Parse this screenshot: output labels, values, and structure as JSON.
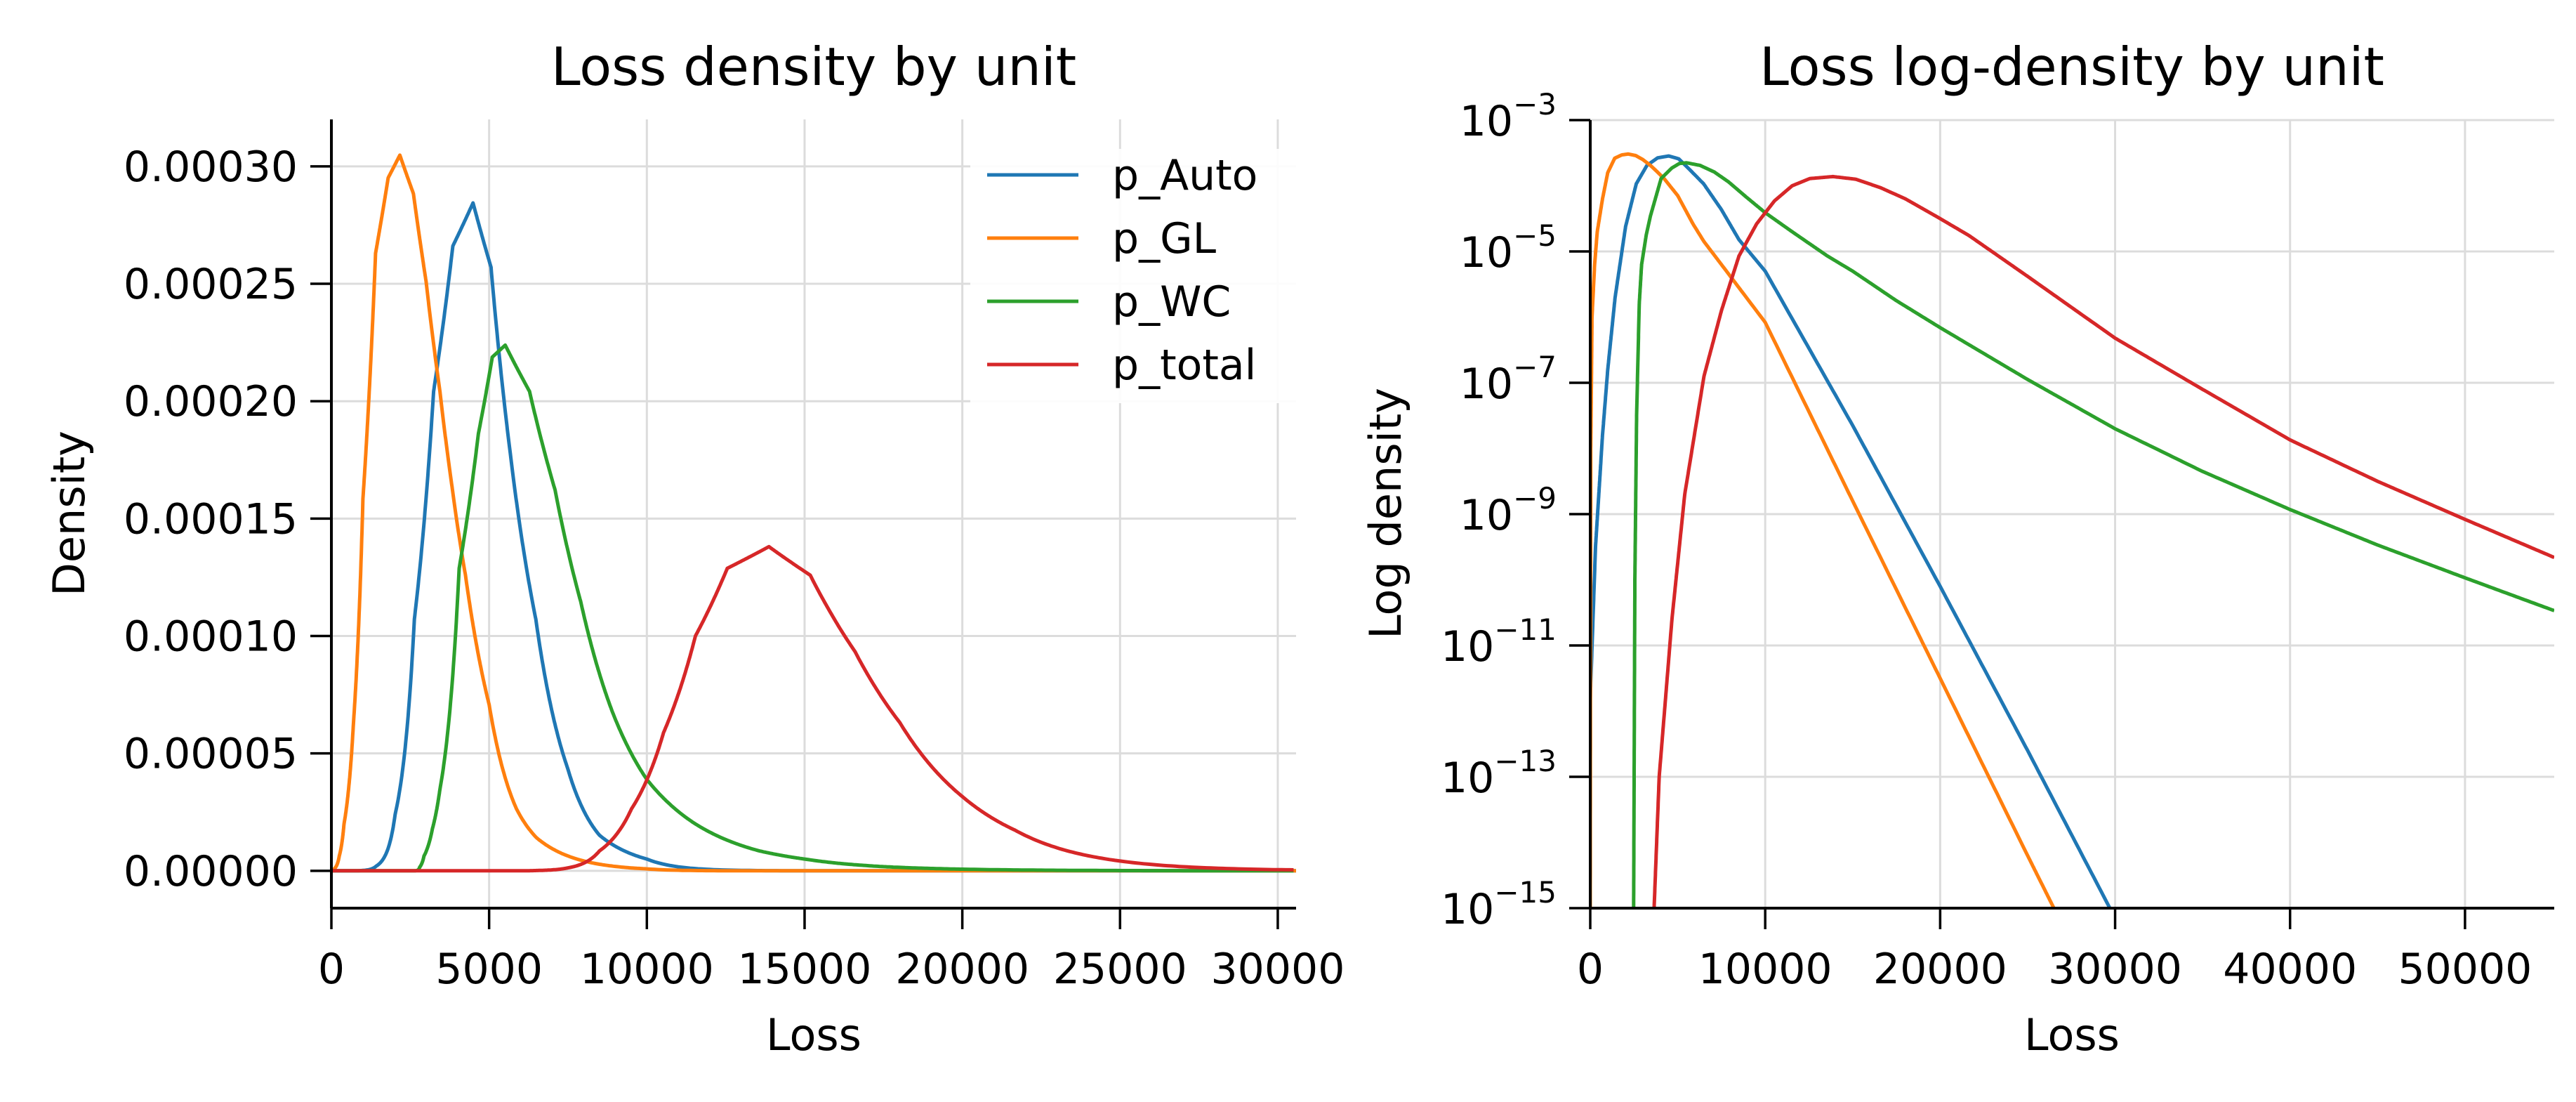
{
  "chart_data": [
    {
      "type": "line",
      "title": "Loss density by unit",
      "xlabel": "Loss",
      "ylabel": "Density",
      "yscale": "linear",
      "xlim": [
        0,
        30580
      ],
      "ylim": [
        -1.59e-05,
        0.00032
      ],
      "grid": true,
      "legend_position": "top-right",
      "xticks": [
        {
          "value": 0,
          "label": "0"
        },
        {
          "value": 5000,
          "label": "5000"
        },
        {
          "value": 10000,
          "label": "10000"
        },
        {
          "value": 15000,
          "label": "15000"
        },
        {
          "value": 20000,
          "label": "20000"
        },
        {
          "value": 25000,
          "label": "25000"
        },
        {
          "value": 30000,
          "label": "30000"
        }
      ],
      "yticks": [
        {
          "value": 0,
          "label": "0.00000"
        },
        {
          "value": 5e-05,
          "label": "0.00005"
        },
        {
          "value": 0.0001,
          "label": "0.00010"
        },
        {
          "value": 0.00015,
          "label": "0.00015"
        },
        {
          "value": 0.0002,
          "label": "0.00020"
        },
        {
          "value": 0.00025,
          "label": "0.00025"
        },
        {
          "value": 0.0003,
          "label": "0.00030"
        }
      ],
      "legend": [
        "p_Auto",
        "p_GL",
        "p_WC",
        "p_total"
      ]
    },
    {
      "type": "line",
      "title": "Loss log-density by unit",
      "xlabel": "Loss",
      "ylabel": "Log density",
      "yscale": "log",
      "xlim": [
        0,
        55100
      ],
      "ylim": [
        1e-15,
        0.001
      ],
      "grid": true,
      "xticks": [
        {
          "value": 0,
          "label": "0"
        },
        {
          "value": 10000,
          "label": "10000"
        },
        {
          "value": 20000,
          "label": "20000"
        },
        {
          "value": 30000,
          "label": "30000"
        },
        {
          "value": 40000,
          "label": "40000"
        },
        {
          "value": 50000,
          "label": "50000"
        }
      ],
      "yticks": [
        {
          "exp": -3,
          "base": "10",
          "sup": "−3"
        },
        {
          "exp": -5,
          "base": "10",
          "sup": "−5"
        },
        {
          "exp": -7,
          "base": "10",
          "sup": "−7"
        },
        {
          "exp": -9,
          "base": "10",
          "sup": "−9"
        },
        {
          "exp": -11,
          "base": "10",
          "sup": "−11"
        },
        {
          "exp": -13,
          "base": "10",
          "sup": "−13"
        },
        {
          "exp": -15,
          "base": "10",
          "sup": "−15"
        }
      ]
    }
  ],
  "series": [
    {
      "name": "p_Auto",
      "color": "#1f77b4",
      "log10_density": [
        [
          0,
          -11.8
        ],
        [
          300,
          -9.5
        ],
        [
          700,
          -7.8
        ],
        [
          1000,
          -6.8
        ],
        [
          1420,
          -5.7
        ],
        [
          2020,
          -4.62
        ],
        [
          2630,
          -3.97
        ],
        [
          3240,
          -3.69
        ],
        [
          3850,
          -3.575
        ],
        [
          4490,
          -3.546
        ],
        [
          5060,
          -3.59
        ],
        [
          5670,
          -3.75
        ],
        [
          6480,
          -3.97
        ],
        [
          7490,
          -4.36
        ],
        [
          8500,
          -4.82
        ],
        [
          10000,
          -5.3
        ],
        [
          15000,
          -7.65
        ],
        [
          20000,
          -10.1
        ],
        [
          25000,
          -12.6
        ],
        [
          29700,
          -15
        ]
      ]
    },
    {
      "name": "p_GL",
      "color": "#ff7f0e",
      "log10_density": [
        [
          0,
          -15
        ],
        [
          30,
          -8
        ],
        [
          100,
          -6
        ],
        [
          250,
          -5.2
        ],
        [
          400,
          -4.7
        ],
        [
          700,
          -4.2
        ],
        [
          1000,
          -3.8
        ],
        [
          1400,
          -3.58
        ],
        [
          1800,
          -3.53
        ],
        [
          2170,
          -3.516
        ],
        [
          2600,
          -3.54
        ],
        [
          3000,
          -3.6
        ],
        [
          3440,
          -3.69
        ],
        [
          3800,
          -3.78
        ],
        [
          4250,
          -3.9
        ],
        [
          5000,
          -4.15
        ],
        [
          5870,
          -4.58
        ],
        [
          6500,
          -4.85
        ],
        [
          7500,
          -5.2
        ],
        [
          10000,
          -6.08
        ],
        [
          15000,
          -8.8
        ],
        [
          20000,
          -11.5
        ],
        [
          25000,
          -14.2
        ],
        [
          26500,
          -15
        ]
      ]
    },
    {
      "name": "p_WC",
      "color": "#2ca02c",
      "log10_density": [
        [
          2480,
          -15
        ],
        [
          2550,
          -10
        ],
        [
          2650,
          -7.5
        ],
        [
          2800,
          -5.8
        ],
        [
          2935,
          -5.2
        ],
        [
          3200,
          -4.75
        ],
        [
          3440,
          -4.46
        ],
        [
          4050,
          -3.89
        ],
        [
          4660,
          -3.73
        ],
        [
          5100,
          -3.66
        ],
        [
          5510,
          -3.65
        ],
        [
          6280,
          -3.69
        ],
        [
          7090,
          -3.79
        ],
        [
          7900,
          -3.94
        ],
        [
          8910,
          -4.17
        ],
        [
          10000,
          -4.41
        ],
        [
          11540,
          -4.7
        ],
        [
          13560,
          -5.07
        ],
        [
          15000,
          -5.3
        ],
        [
          17500,
          -5.75
        ],
        [
          20000,
          -6.16
        ],
        [
          25000,
          -6.95
        ],
        [
          30000,
          -7.7
        ],
        [
          35000,
          -8.35
        ],
        [
          40000,
          -8.93
        ],
        [
          45000,
          -9.47
        ],
        [
          50000,
          -9.97
        ],
        [
          55100,
          -10.47
        ]
      ]
    },
    {
      "name": "p_total",
      "color": "#d62728",
      "log10_density": [
        [
          3650,
          -15
        ],
        [
          3940,
          -13
        ],
        [
          4670,
          -10.6
        ],
        [
          5400,
          -8.7
        ],
        [
          6500,
          -6.9
        ],
        [
          7500,
          -5.9
        ],
        [
          8500,
          -5.07
        ],
        [
          9510,
          -4.58
        ],
        [
          10530,
          -4.23
        ],
        [
          11540,
          -4.0
        ],
        [
          12550,
          -3.89
        ],
        [
          13870,
          -3.86
        ],
        [
          15180,
          -3.9
        ],
        [
          16600,
          -4.03
        ],
        [
          18020,
          -4.2
        ],
        [
          20000,
          -4.5
        ],
        [
          21660,
          -4.76
        ],
        [
          25000,
          -5.38
        ],
        [
          30000,
          -6.32
        ],
        [
          35000,
          -7.1
        ],
        [
          40000,
          -7.87
        ],
        [
          45000,
          -8.5
        ],
        [
          50000,
          -9.08
        ],
        [
          55100,
          -9.66
        ]
      ]
    }
  ]
}
